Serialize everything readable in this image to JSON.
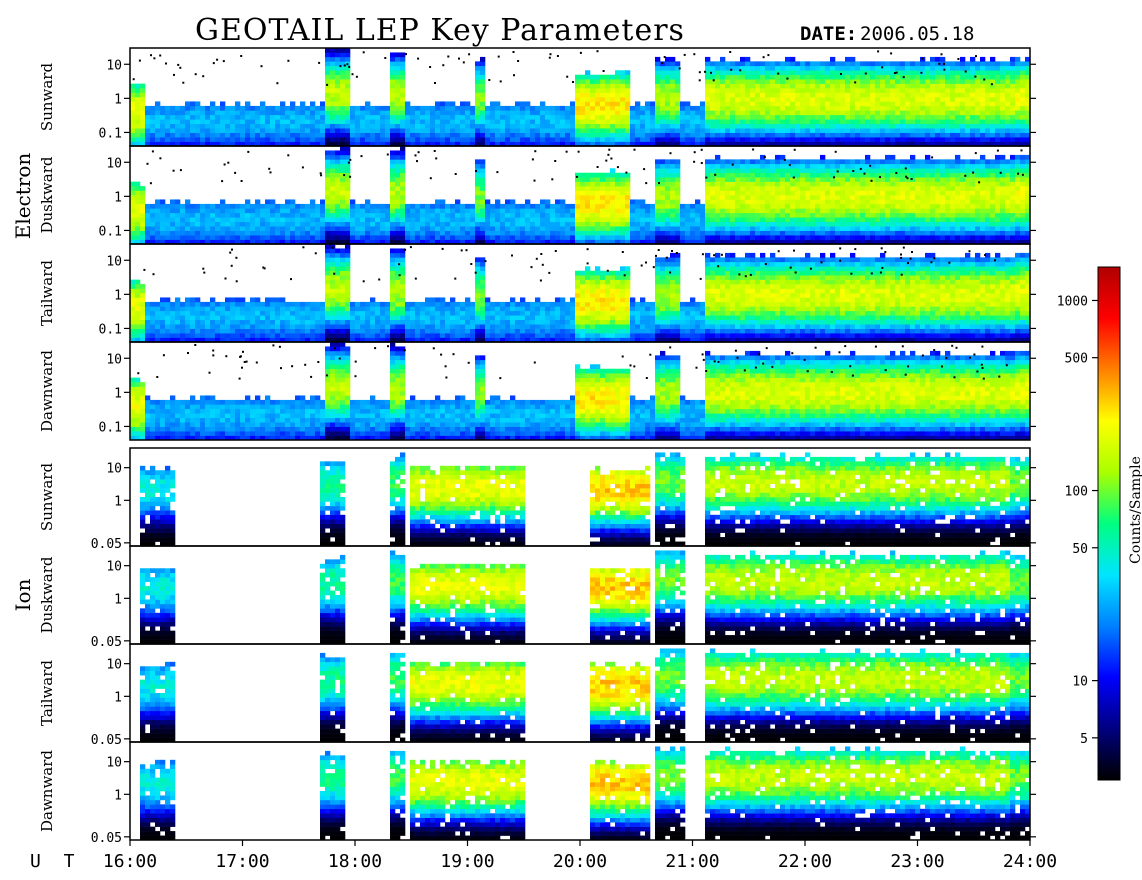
{
  "chart_data": {
    "type": "heatmap",
    "title": "GEOTAIL LEP Key Parameters",
    "date_label": "DATE:",
    "date_value": "2006.05.18",
    "x_axis": {
      "prefix": "U T",
      "ticks": [
        "16:00",
        "17:00",
        "18:00",
        "19:00",
        "20:00",
        "21:00",
        "22:00",
        "23:00",
        "24:00"
      ],
      "range_hours": [
        16,
        24
      ]
    },
    "y_scale": "log",
    "colorbar": {
      "label": "Counts/Sample",
      "scale": "log",
      "range": [
        3,
        1500
      ],
      "ticks": [
        5,
        10,
        50,
        100,
        500,
        1000
      ],
      "tick_labels": [
        "5",
        "10",
        "50",
        "100",
        "500",
        "1000"
      ],
      "colors": [
        "#000000",
        "#000080",
        "#0000ff",
        "#0080ff",
        "#00e5ff",
        "#00ff80",
        "#aaff00",
        "#ffff00",
        "#ff8000",
        "#ff0000",
        "#b00000"
      ]
    },
    "groups": [
      {
        "name": "Electron",
        "panels": [
          {
            "label": "Sunward",
            "y_ticks": [
              "10",
              "1",
              "0.1"
            ],
            "y_values": [
              10,
              1,
              0.1
            ],
            "y_range": [
              0.04,
              30
            ]
          },
          {
            "label": "Duskward",
            "y_ticks": [
              "10",
              "1",
              "0.1"
            ],
            "y_values": [
              10,
              1,
              0.1
            ],
            "y_range": [
              0.04,
              30
            ]
          },
          {
            "label": "Tailward",
            "y_ticks": [
              "10",
              "1",
              "0.1"
            ],
            "y_values": [
              10,
              1,
              0.1
            ],
            "y_range": [
              0.04,
              30
            ]
          },
          {
            "label": "Dawnward",
            "y_ticks": [
              "10",
              "1",
              "0.1"
            ],
            "y_values": [
              10,
              1,
              0.1
            ],
            "y_range": [
              0.04,
              30
            ]
          }
        ]
      },
      {
        "name": "Ion",
        "panels": [
          {
            "label": "Sunward",
            "y_ticks": [
              "10",
              "1",
              "0.05"
            ],
            "y_values": [
              10,
              1,
              0.05
            ],
            "y_range": [
              0.04,
              40
            ]
          },
          {
            "label": "Duskward",
            "y_ticks": [
              "10",
              "1",
              "0.05"
            ],
            "y_values": [
              10,
              1,
              0.05
            ],
            "y_range": [
              0.04,
              40
            ]
          },
          {
            "label": "Tailward",
            "y_ticks": [
              "10",
              "1",
              "0.05"
            ],
            "y_values": [
              10,
              1,
              0.05
            ],
            "y_range": [
              0.04,
              40
            ]
          },
          {
            "label": "Dawnward",
            "y_ticks": [
              "10",
              "1",
              "0.05"
            ],
            "y_values": [
              10,
              1,
              0.05
            ],
            "y_range": [
              0.04,
              40
            ]
          }
        ]
      }
    ],
    "electron_activity": [
      {
        "start": 16.0,
        "end": 16.15,
        "top": 2,
        "peak": 200
      },
      {
        "start": 17.72,
        "end": 17.95,
        "top": 25,
        "peak": 150
      },
      {
        "start": 18.3,
        "end": 18.45,
        "top": 20,
        "peak": 140
      },
      {
        "start": 19.05,
        "end": 19.15,
        "top": 12,
        "peak": 100
      },
      {
        "start": 19.95,
        "end": 20.45,
        "top": 5,
        "peak": 250
      },
      {
        "start": 20.65,
        "end": 20.9,
        "top": 12,
        "peak": 130
      },
      {
        "start": 21.1,
        "end": 23.9,
        "top": 12,
        "peak": 180
      },
      {
        "start": 23.88,
        "end": 24.0,
        "top": 15,
        "peak": 200
      }
    ],
    "ion_activity": [
      {
        "start": 16.1,
        "end": 16.4,
        "top": 8,
        "peak": 40
      },
      {
        "start": 17.7,
        "end": 17.9,
        "top": 15,
        "peak": 60
      },
      {
        "start": 18.32,
        "end": 18.45,
        "top": 20,
        "peak": 80
      },
      {
        "start": 18.5,
        "end": 19.5,
        "top": 10,
        "peak": 200
      },
      {
        "start": 20.1,
        "end": 20.6,
        "top": 8,
        "peak": 300
      },
      {
        "start": 20.65,
        "end": 20.92,
        "top": 25,
        "peak": 100
      },
      {
        "start": 21.1,
        "end": 23.8,
        "top": 20,
        "peak": 150
      },
      {
        "start": 23.82,
        "end": 24.0,
        "top": 20,
        "peak": 100
      }
    ]
  }
}
